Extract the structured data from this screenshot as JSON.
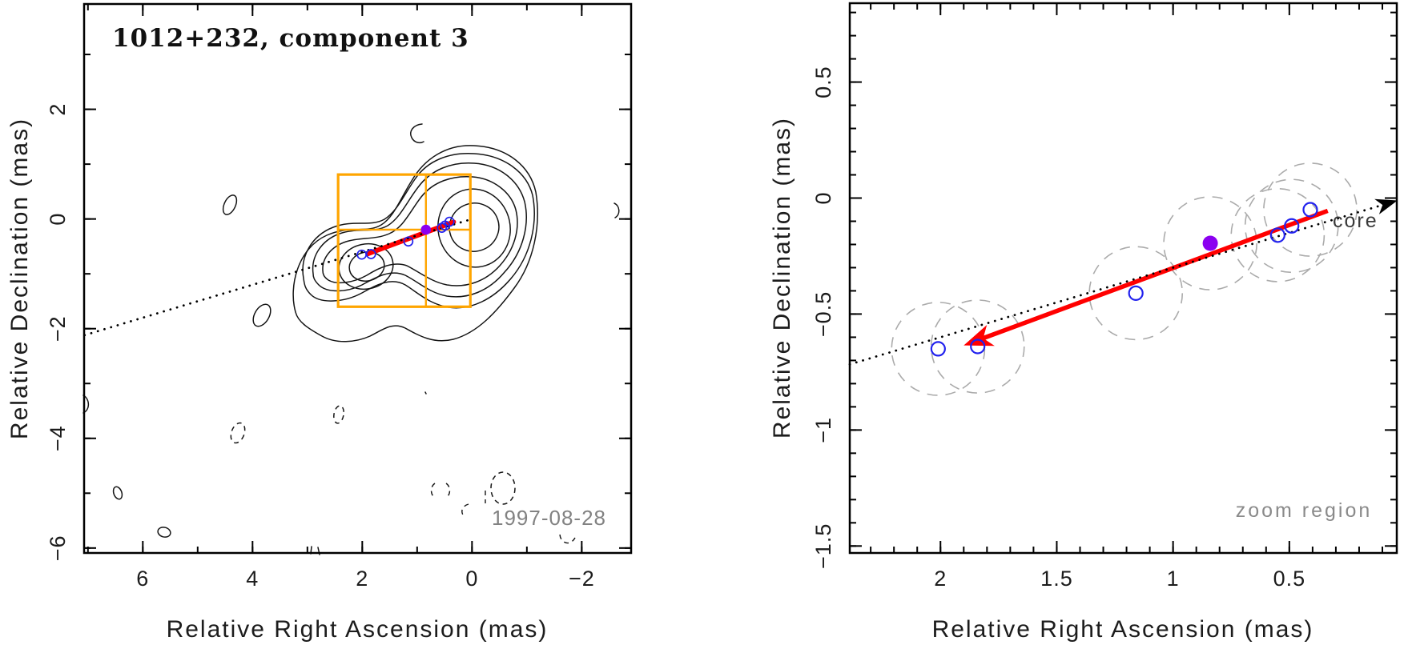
{
  "figure": {
    "background": "#ffffff",
    "colors": {
      "frame": "#000000",
      "contour": "#151515",
      "component_marker": "#2222ee",
      "mean_marker": "#8b00f0",
      "motion_arrow": "#ff0000",
      "zoom_box": "#ffa500",
      "uncertainty_circle": "#ababab",
      "jet_line": "#000000",
      "muted_text": "#828282",
      "core_text": "#3a3a3a"
    }
  },
  "left_panel": {
    "title": "1012+232, component 3",
    "epoch_label": "1997-08-28",
    "xlabel": "Relative Right Ascension (mas)",
    "ylabel": "Relative Declination (mas)"
  },
  "right_panel": {
    "xlabel": "Relative Right Ascension (mas)",
    "ylabel": "Relative Declination (mas)",
    "core_label": "core",
    "zoom_label": "zoom region"
  },
  "chart_data": [
    {
      "type": "contour",
      "panel": "left",
      "title": "1012+232, component 3",
      "epoch": "1997-08-28",
      "xlabel": "Relative Right Ascension (mas)",
      "ylabel": "Relative Declination (mas)",
      "xlim": [
        7.07,
        -2.9
      ],
      "ylim": [
        -6.09,
        3.92
      ],
      "xticks": [
        6,
        4,
        2,
        0,
        -2
      ],
      "xtick_labels": [
        "6",
        "4",
        "2",
        "0",
        "−2"
      ],
      "yticks": [
        2,
        0,
        -2,
        -4,
        -6
      ],
      "ytick_labels": [
        "2",
        "0",
        "−2",
        "−4",
        "−6"
      ],
      "xminor": {
        "from": 7,
        "to": -2,
        "step": 1
      },
      "yminor": {
        "from": 3,
        "to": -6,
        "step": 1
      },
      "components_ra_dec": [
        [
          2.01,
          -0.65
        ],
        [
          1.84,
          -0.64
        ],
        [
          1.16,
          -0.41
        ],
        [
          0.55,
          -0.16
        ],
        [
          0.49,
          -0.12
        ],
        [
          0.41,
          -0.05
        ]
      ],
      "mean_component_ra_dec": [
        0.84,
        -0.195
      ],
      "motion_arrow_ra_dec": {
        "from": [
          0.335,
          -0.055
        ],
        "to": [
          1.9,
          -0.635
        ]
      },
      "jet_line": {
        "slope_dec_per_ra": -0.3,
        "ra_from": 7.06,
        "ra_to": 0.0
      },
      "zoom_box_ra_dec": {
        "ra": [
          2.44,
          0.03
        ],
        "dec": [
          -1.6,
          0.81
        ]
      },
      "crosshair_ra_dec": [
        0.84,
        -0.195
      ],
      "contours": {
        "solid_ellipses": [
          [
            592,
            284,
            31,
            30,
            -20
          ],
          [
            592,
            285,
            45,
            49,
            -12
          ],
          [
            458,
            333,
            22,
            18,
            -12
          ],
          [
            457,
            333,
            34,
            28,
            -12
          ],
          [
            287,
            256,
            7,
            13,
            25
          ],
          [
            327,
            394,
            9,
            15,
            30
          ],
          [
            147,
            616,
            5,
            8,
            -20
          ],
          [
            205,
            665,
            8,
            6,
            15
          ]
        ],
        "solid_paths": [
          "M 403 338 C 402 322 414 308 432 302 C 450 296 468 300 486 292 C 504 284 512 264 526 246 C 541 227 565 219 590 221 C 616 223 638 240 644 262 C 650 286 642 312 624 332 C 606 352 582 360 558 356 C 538 352 524 340 508 332 C 492 326 474 334 458 344 C 440 354 420 356 410 350 C 404 346 403 342 403 338 Z",
          "M 391 342 C 388 320 402 300 424 292 C 446 284 466 292 484 282 C 500 272 508 252 522 234 C 538 212 564 202 592 204 C 624 206 648 226 655 252 C 662 282 652 316 630 340 C 610 364 584 374 558 370 C 536 366 522 352 506 344 C 488 336 470 346 452 356 C 432 366 408 366 398 356 C 392 350 391 346 391 342 Z",
          "M 379 348 C 374 320 390 294 416 284 C 442 274 462 284 480 274 C 496 264 504 244 518 224 C 534 200 562 190 592 192 C 630 194 658 216 665 244 C 672 280 662 320 638 348 C 616 374 588 388 560 384 C 536 380 522 366 506 356 C 488 346 470 356 452 366 C 430 378 400 380 388 368 C 380 360 380 354 379 348 Z",
          "M 369 390 C 360 358 372 310 408 294 C 438 281 458 292 476 281 C 492 271 500 248 514 226 C 530 198 558 180 592 182 C 634 184 662 208 669 240 C 676 282 666 328 642 360 C 620 390 596 416 566 424 C 542 430 524 420 506 410 C 490 402 478 412 462 420 C 444 428 420 430 402 420 C 384 410 372 402 369 390 Z",
          "M 527 155 C 516 156 510 164 514 172 C 517 178 524 180 529 177",
          "M 767 254 C 774 257 775 268 768 272",
          "M 104 494 C 112 498 113 512 104 516",
          "M 389 683 L 388 692",
          "M 397 684 L 399 693",
          "M 531 490 L 532 492"
        ],
        "dashed_ellipses": [
          [
            297,
            541,
            8,
            13,
            20
          ],
          [
            423,
            518,
            6,
            11,
            10
          ],
          [
            628,
            610,
            15,
            20,
            0
          ]
        ],
        "dashed_paths": [
          "M 543 604 C 537 608 537 618 543 622",
          "M 557 604 C 563 608 563 618 557 622",
          "M 585 630 C 577 632 574 640 580 646",
          "M 606 613 L 606 629",
          "M 699 668 C 700 679 712 683 718 672"
        ]
      }
    },
    {
      "type": "scatter",
      "panel": "right",
      "xlabel": "Relative Right Ascension (mas)",
      "ylabel": "Relative Declination (mas)",
      "xlim": [
        2.39,
        0.038
      ],
      "ylim": [
        -1.53,
        0.84
      ],
      "xticks": [
        2,
        1.5,
        1,
        0.5
      ],
      "xtick_labels": [
        "2",
        "1.5",
        "1",
        "0.5"
      ],
      "yticks": [
        0.5,
        0,
        -0.5,
        -1,
        -1.5
      ],
      "ytick_labels": [
        "0.5",
        "0",
        "−0.5",
        "−1",
        "−1.5"
      ],
      "xminor": {
        "from": 2.3,
        "to": 0.1,
        "step": 0.1
      },
      "yminor": {
        "from": 0.8,
        "to": -1.5,
        "step": 0.1
      },
      "points_ra_dec": [
        [
          2.01,
          -0.65
        ],
        [
          1.84,
          -0.64
        ],
        [
          1.16,
          -0.41
        ],
        [
          0.55,
          -0.16
        ],
        [
          0.49,
          -0.12
        ],
        [
          0.41,
          -0.05
        ]
      ],
      "mean_point_ra_dec": [
        0.84,
        -0.195
      ],
      "uncertainty_radius_mas": 0.2,
      "motion_arrow_ra_dec": {
        "from": [
          0.335,
          -0.055
        ],
        "to": [
          1.9,
          -0.635
        ]
      },
      "core_line": {
        "slope_dec_per_ra": -0.3,
        "ra_from": 2.39,
        "ra_to": 0.07,
        "arrow_tip_ra": 0.035
      },
      "core_label": "core",
      "zoom_label": "zoom region"
    }
  ]
}
